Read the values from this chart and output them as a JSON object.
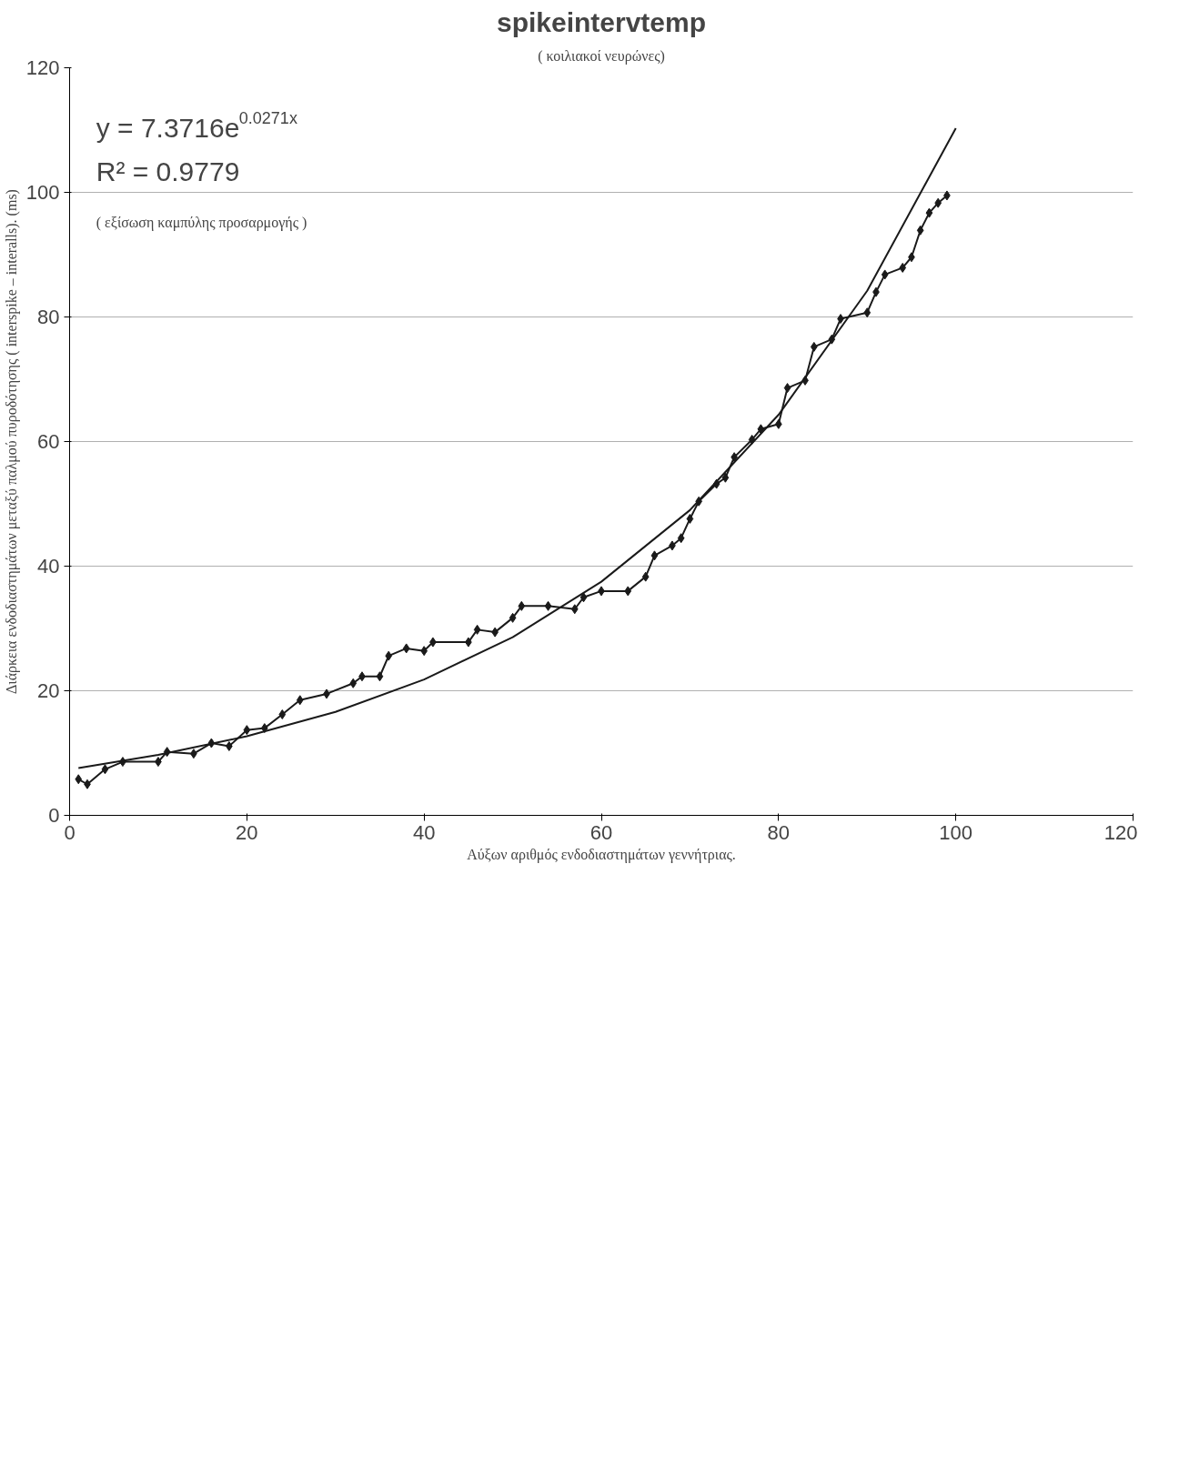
{
  "chart_data": {
    "type": "line",
    "title": "spikeintervtemp",
    "subtitle": "( κοιλιακοί νευρώνες)",
    "xlabel": "Αύξων αριθμός ενδοδιαστημάτων γεννήτριας.",
    "ylabel": "Διάρκεια ενδοδιαστημάτων μεταξύ παλμού πυροδότησης ( interspike – interalls). (ms)",
    "annotations": [
      "y = 7.3716e$^{0.0271x}$",
      "R² = 0.9779",
      "( εξίσωση καμπύλης προσαρμογής )"
    ],
    "xlim": [
      0,
      120
    ],
    "ylim": [
      0,
      120
    ],
    "xticks": [
      0,
      20,
      40,
      60,
      80,
      100,
      120
    ],
    "yticks": [
      0,
      20,
      40,
      60,
      80,
      100,
      120
    ],
    "grid": "y",
    "series": [
      {
        "marker": "diamond",
        "color": "#1a1a1a",
        "x": [
          1,
          2,
          4,
          6,
          10,
          11,
          14,
          16,
          18,
          20,
          22,
          24,
          26,
          29,
          32,
          33,
          35,
          36,
          38,
          40,
          41,
          45,
          46,
          48,
          50,
          51,
          54,
          57,
          58,
          60,
          63,
          65,
          66,
          68,
          69,
          70,
          71,
          73,
          74,
          75,
          77,
          78,
          80,
          81,
          83,
          84,
          86,
          87,
          90,
          91,
          92,
          94,
          95,
          96,
          97,
          98,
          99
        ],
        "values": [
          5.8,
          5,
          7.4,
          8.6,
          8.6,
          10.2,
          9.9,
          11.6,
          11.1,
          13.7,
          14,
          16.2,
          18.5,
          19.5,
          21.2,
          22.3,
          22.3,
          25.6,
          26.8,
          26.4,
          27.8,
          27.8,
          29.8,
          29.4,
          31.7,
          33.6,
          33.6,
          33.1,
          35,
          36,
          36,
          38.3,
          41.7,
          43.3,
          44.5,
          47.6,
          50.4,
          53.2,
          54.2,
          57.5,
          60.3,
          62,
          62.8,
          68.6,
          69.8,
          75.2,
          76.4,
          79.7,
          80.7,
          84,
          86.8,
          87.9,
          89.6,
          93.9,
          96.7,
          98.3,
          99.5
        ]
      },
      {
        "marker": "none",
        "color": "#1a1a1a",
        "x": [
          1,
          10,
          20,
          30,
          40,
          50,
          60,
          70,
          80,
          90,
          100
        ],
        "values": [
          7.6,
          9.7,
          12.7,
          16.6,
          21.8,
          28.6,
          37.5,
          49.0,
          64.3,
          84.2,
          110.3
        ]
      }
    ]
  }
}
